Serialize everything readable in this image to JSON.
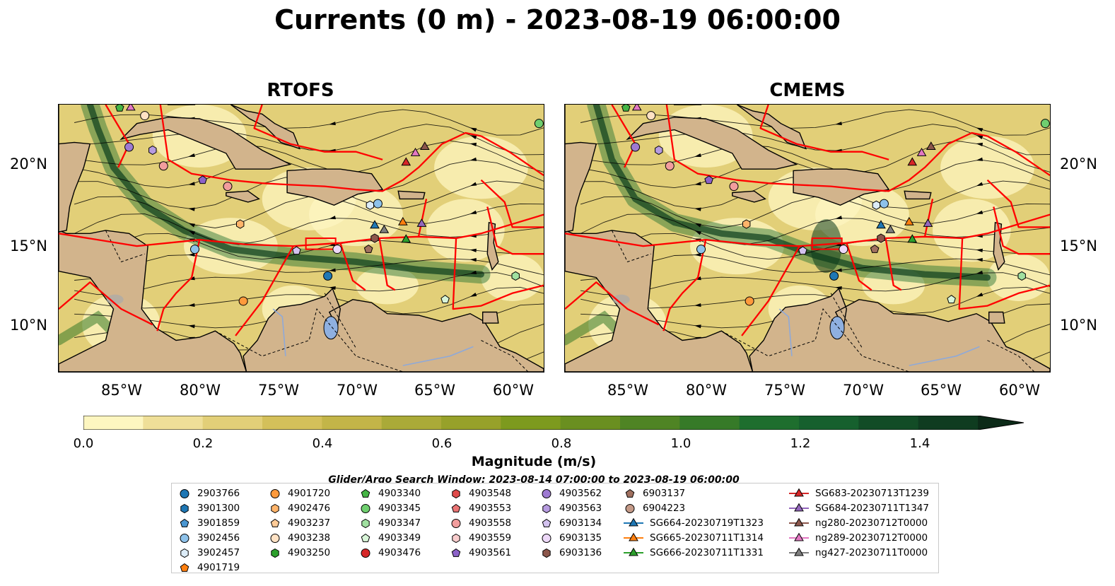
{
  "title": "Currents (0 m) - 2023-08-19 06:00:00",
  "panels": [
    {
      "id": "rtofs",
      "title": "RTOFS"
    },
    {
      "id": "cmems",
      "title": "CMEMS"
    }
  ],
  "map_extent": {
    "lon": [
      -89,
      -58
    ],
    "lat": [
      7,
      24
    ]
  },
  "lat_labels": [
    "20°N",
    "15°N",
    "10°N"
  ],
  "lon_labels": [
    "85°W",
    "80°W",
    "75°W",
    "70°W",
    "65°W",
    "60°W"
  ],
  "colors": {
    "land": "#d2b48c",
    "lake": "#8fb0e0",
    "eez_lines": "#ff0000",
    "streamlines": "#000000",
    "ocean_low": "#fdf6c0",
    "ocean_high": "#0c3d1c"
  },
  "colorbar": {
    "label": "Magnitude (m/s)",
    "ticks": [
      "0.0",
      "0.2",
      "0.4",
      "0.6",
      "0.8",
      "1.0",
      "1.2",
      "1.4"
    ],
    "range": [
      0,
      1.5
    ],
    "extend": "max",
    "colors": [
      "#fdf6c0",
      "#efdf98",
      "#e2cf78",
      "#d4c05a",
      "#c3b548",
      "#aaaa38",
      "#97a12a",
      "#7d9a1e",
      "#6a8f20",
      "#4f8424",
      "#367a28",
      "#1e6e2e",
      "#16602e",
      "#124c26",
      "#0f3c20",
      "#0c2a18"
    ]
  },
  "search_window": "Glider/Argo Search Window: 2023-08-14 07:00:00 to 2023-08-19 06:00:00",
  "legend_columns": [
    [
      {
        "label": "2903766",
        "marker": "circle",
        "color": "#1f77b4"
      },
      {
        "label": "3901300",
        "marker": "hexagon",
        "color": "#1f77b4"
      },
      {
        "label": "3901859",
        "marker": "pentagon",
        "color": "#4a96d1"
      },
      {
        "label": "3902456",
        "marker": "circle",
        "color": "#8ec2ea"
      },
      {
        "label": "3902457",
        "marker": "hexagon",
        "color": "#dcecf8"
      },
      {
        "label": "4901719",
        "marker": "pentagon",
        "color": "#ff7f0e"
      }
    ],
    [
      {
        "label": "4901720",
        "marker": "circle",
        "color": "#ff9a3c"
      },
      {
        "label": "4902476",
        "marker": "hexagon",
        "color": "#ffb46a"
      },
      {
        "label": "4903237",
        "marker": "pentagon",
        "color": "#ffcb97"
      },
      {
        "label": "4903238",
        "marker": "circle",
        "color": "#ffe2c4"
      },
      {
        "label": "4903250",
        "marker": "hexagon",
        "color": "#2ca02c"
      }
    ],
    [
      {
        "label": "4903340",
        "marker": "pentagon",
        "color": "#45b545"
      },
      {
        "label": "4903345",
        "marker": "circle",
        "color": "#6fcf6f"
      },
      {
        "label": "4903347",
        "marker": "hexagon",
        "color": "#a0e0a0"
      },
      {
        "label": "4903349",
        "marker": "pentagon",
        "color": "#d8f5d8"
      },
      {
        "label": "4903476",
        "marker": "circle",
        "color": "#d62728"
      }
    ],
    [
      {
        "label": "4903548",
        "marker": "hexagon",
        "color": "#e04b4b"
      },
      {
        "label": "4903553",
        "marker": "pentagon",
        "color": "#ea7474"
      },
      {
        "label": "4903558",
        "marker": "circle",
        "color": "#f29d9d"
      },
      {
        "label": "4903559",
        "marker": "hexagon",
        "color": "#f8cccc"
      },
      {
        "label": "4903561",
        "marker": "pentagon",
        "color": "#8c62c8"
      }
    ],
    [
      {
        "label": "4903562",
        "marker": "circle",
        "color": "#9e7ad2"
      },
      {
        "label": "4903563",
        "marker": "hexagon",
        "color": "#b69be0"
      },
      {
        "label": "6903134",
        "marker": "pentagon",
        "color": "#d3c2ef"
      },
      {
        "label": "6903135",
        "marker": "circle",
        "color": "#edd8f8"
      },
      {
        "label": "6903136",
        "marker": "hexagon",
        "color": "#8c564b"
      }
    ],
    [
      {
        "label": "6903137",
        "marker": "pentagon",
        "color": "#a0705f"
      },
      {
        "label": "6904223",
        "marker": "circle",
        "color": "#c49a88"
      },
      {
        "label": "SG664-20230719T1323",
        "marker": "triangle-line",
        "color": "#1f77b4"
      },
      {
        "label": "SG665-20230711T1314",
        "marker": "triangle-line",
        "color": "#ff7f0e"
      },
      {
        "label": "SG666-20230711T1331",
        "marker": "triangle-line",
        "color": "#2ca02c"
      }
    ],
    [
      {
        "label": "SG683-20230713T1239",
        "marker": "triangle-line",
        "color": "#d62728"
      },
      {
        "label": "SG684-20230711T1347",
        "marker": "triangle-line",
        "color": "#9467bd"
      },
      {
        "label": "ng280-20230712T0000",
        "marker": "triangle-line",
        "color": "#8c564b"
      },
      {
        "label": "ng289-20230712T0000",
        "marker": "triangle-line",
        "color": "#e377c2"
      },
      {
        "label": "ng427-20230711T0000",
        "marker": "triangle-line",
        "color": "#7f7f7f"
      }
    ]
  ]
}
